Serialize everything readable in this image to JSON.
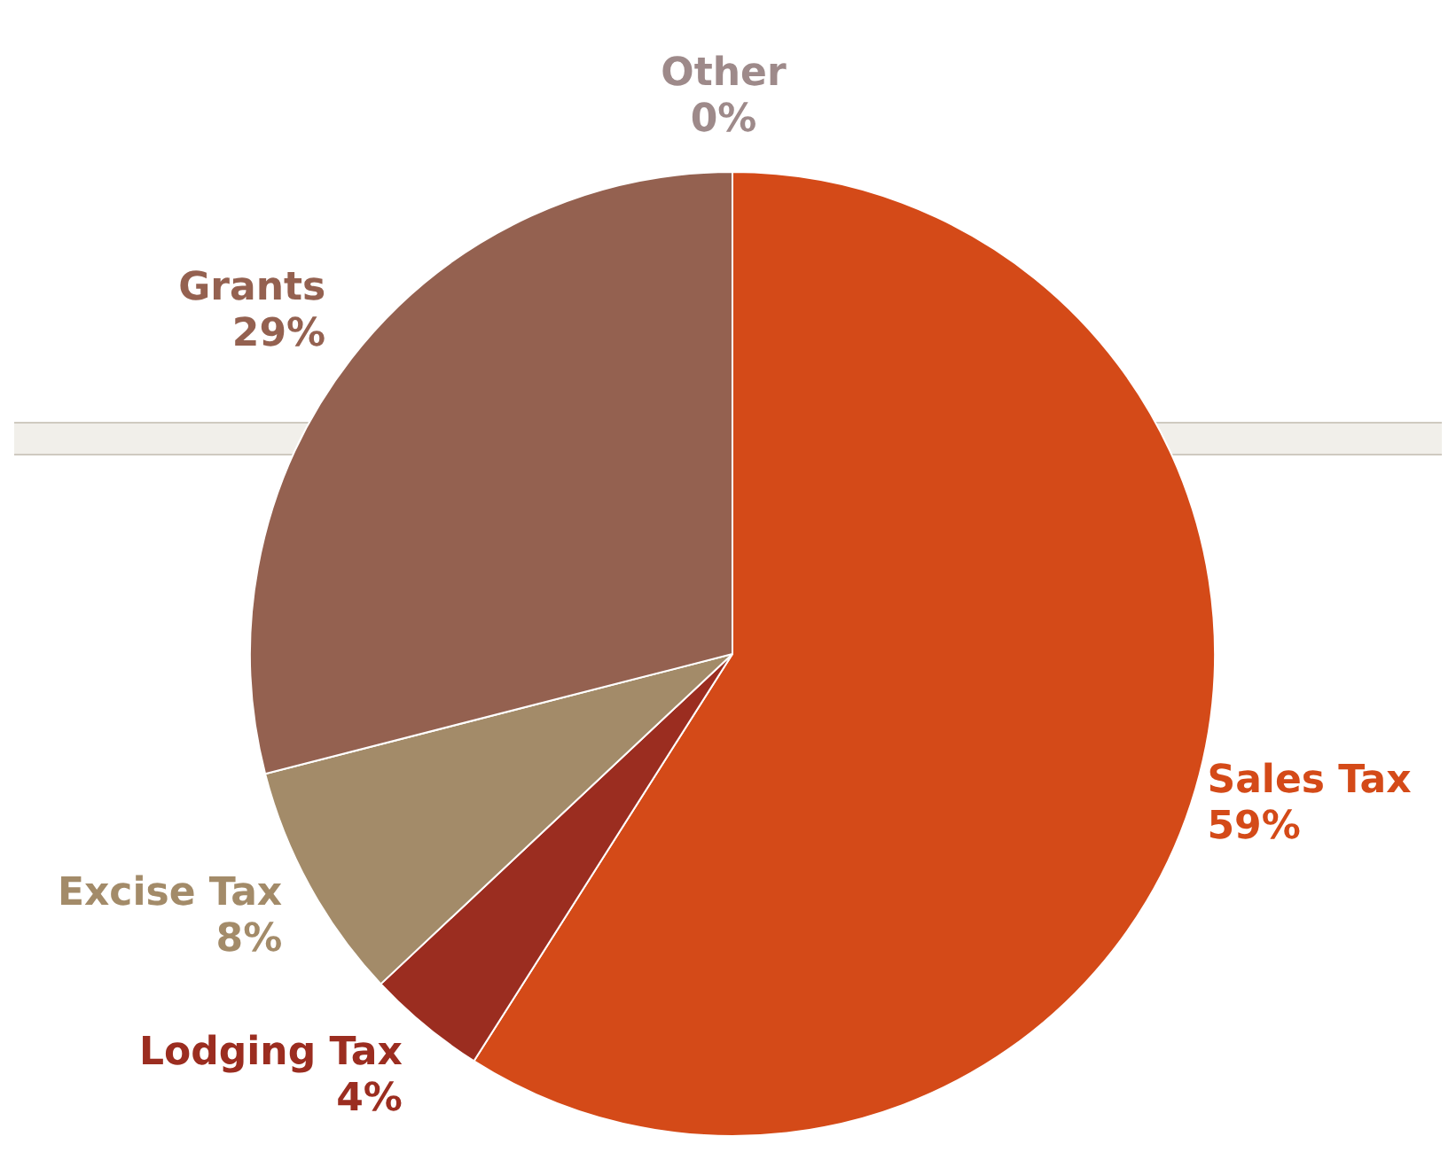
{
  "chart_data": {
    "type": "pie",
    "categories": [
      "Sales Tax",
      "Lodging Tax",
      "Excise Tax",
      "Grants",
      "Other"
    ],
    "values": [
      59,
      4,
      8,
      29,
      0
    ],
    "colors": [
      "#d44a18",
      "#9b2d20",
      "#a38b69",
      "#946150",
      "#9e8a8a"
    ],
    "value_labels": [
      "59%",
      "4%",
      "8%",
      "29%",
      "0%"
    ],
    "legend": false
  }
}
